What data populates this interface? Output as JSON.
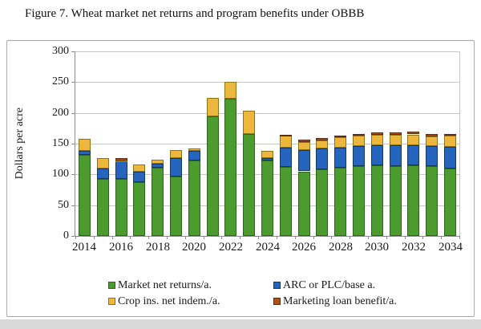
{
  "colors": {
    "figure_border": "#a8a8a8",
    "axis": "#8c8c8c",
    "gridline": "#c6c6c6",
    "bottom_strip": "#d9d9d9",
    "plot_background": "#ffffff"
  },
  "chart_data": {
    "type": "bar",
    "stacked": true,
    "title": "Figure 7. Wheat market net returns and program benefits under OBBB",
    "xlabel": "",
    "ylabel": "Dollars per acre",
    "ylim": [
      0,
      300
    ],
    "yticks": [
      0,
      50,
      100,
      150,
      200,
      250,
      300
    ],
    "grid": true,
    "legend_position": "bottom",
    "categories": [
      2014,
      2015,
      2016,
      2017,
      2018,
      2019,
      2020,
      2021,
      2022,
      2023,
      2024,
      2025,
      2026,
      2027,
      2028,
      2029,
      2030,
      2031,
      2032,
      2033,
      2034
    ],
    "xtick_labels": [
      "2014",
      "2016",
      "2018",
      "2020",
      "2022",
      "2024",
      "2026",
      "2028",
      "2030",
      "2032",
      "2034"
    ],
    "series": [
      {
        "name": "Market net returns/a.",
        "color": "#4c9b2f",
        "border": "#2f641c",
        "values": [
          132,
          93,
          92,
          88,
          111,
          96,
          123,
          194,
          223,
          166,
          123,
          112,
          105,
          108,
          111,
          114,
          115,
          113,
          115,
          113,
          110
        ]
      },
      {
        "name": "ARC or PLC/base a.",
        "color": "#2565be",
        "border": "#17375e",
        "values": [
          6,
          17,
          29,
          16,
          7,
          31,
          15,
          0,
          0,
          0,
          3,
          32,
          35,
          34,
          33,
          32,
          32,
          34,
          33,
          33,
          35
        ]
      },
      {
        "name": "Crop ins. net indem./a.",
        "color": "#edb63c",
        "border": "#8f7415",
        "values": [
          20,
          17,
          2,
          12,
          6,
          12,
          4,
          30,
          27,
          37,
          12,
          19,
          13,
          13,
          16,
          17,
          17,
          17,
          17,
          16,
          18
        ]
      },
      {
        "name": "Marketing loan benefit/a.",
        "color": "#af5219",
        "border": "#5c2d10",
        "values": [
          0,
          0,
          4,
          0,
          0,
          0,
          0,
          0,
          0,
          0,
          0,
          1,
          3,
          4,
          3,
          3,
          4,
          4,
          4,
          4,
          3
        ]
      }
    ]
  }
}
